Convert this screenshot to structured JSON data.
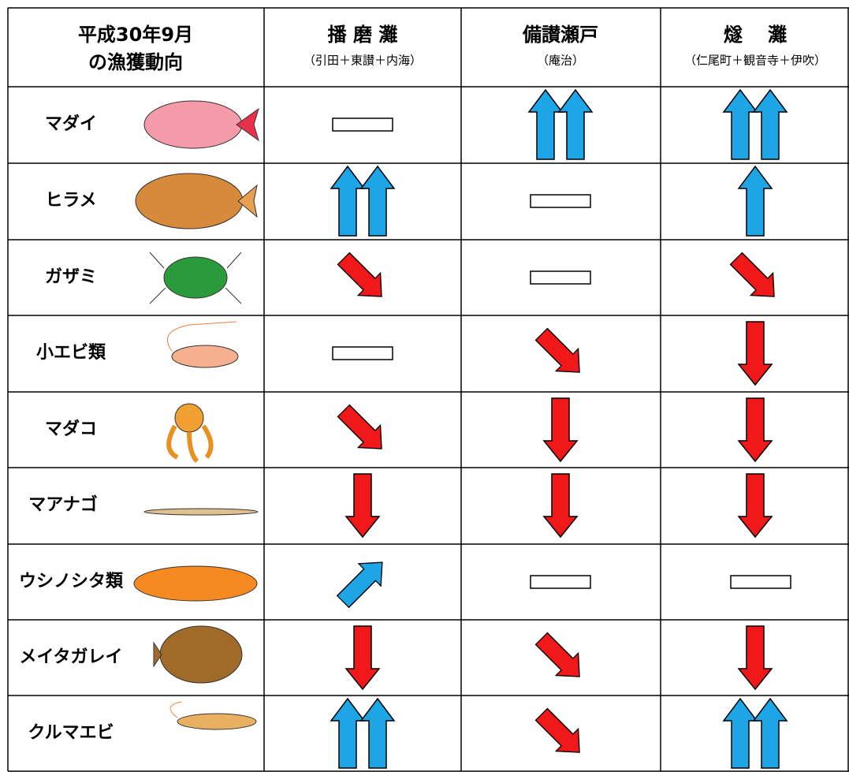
{
  "header": {
    "title": [
      "平成30年9月",
      "の漁獲動向"
    ],
    "regions": [
      {
        "name": "播 磨 灘",
        "sub": "（引田＋東讃＋内海）"
      },
      {
        "name": "備讃瀬戸",
        "sub": "（庵治）"
      },
      {
        "name": "燧　 灘",
        "sub": "（仁尾町＋観音寺＋伊吹）"
      }
    ]
  },
  "rows": [
    {
      "name": "マダイ"
    },
    {
      "name": "ヒラメ"
    },
    {
      "name": "ガザミ"
    },
    {
      "name": "小エビ類"
    },
    {
      "name": "マダコ"
    },
    {
      "name": "マアナゴ"
    },
    {
      "name": "ウシノシタ類"
    },
    {
      "name": "メイタガレイ"
    },
    {
      "name": "クルマエビ"
    }
  ]
}
